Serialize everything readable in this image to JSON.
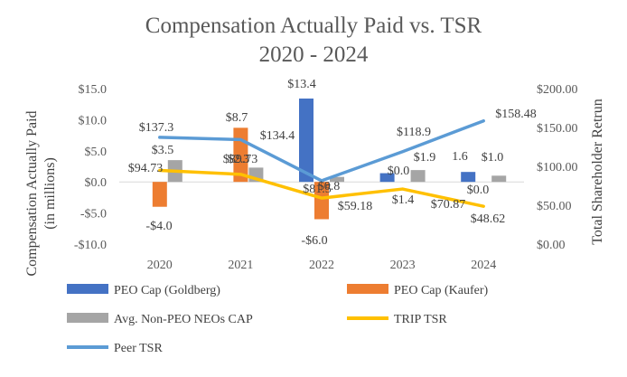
{
  "chart_data": {
    "type": "bar+line",
    "title_line1": "Compensation Actually Paid vs. TSR",
    "title_line2": "2020 - 2024",
    "categories": [
      "2020",
      "2021",
      "2022",
      "2023",
      "2024"
    ],
    "y_left": {
      "label_line1": "Compensation Actually Paid",
      "label_line2": "(in millions)",
      "ylim": [
        -10,
        15
      ],
      "ticks": [
        15,
        10,
        5,
        0,
        -5,
        -10
      ],
      "tick_labels": [
        "$15.0",
        "$10.0",
        "$5.0",
        "$0.0",
        "-$5.0",
        "-$10.0"
      ]
    },
    "y_right": {
      "label": "Total Shareholder Retrun",
      "ylim": [
        0,
        200
      ],
      "ticks": [
        200,
        150,
        100,
        50,
        0
      ],
      "tick_labels": [
        "$200.00",
        "$150.00",
        "$100.00",
        "$50.00",
        "$0.00"
      ]
    },
    "bar_series": [
      {
        "name": "PEO Cap (Goldberg)",
        "color": "#4472C4",
        "values": [
          null,
          null,
          13.4,
          1.4,
          1.6
        ],
        "labels": [
          "",
          "",
          "$13.4",
          "$1.4",
          "1.6"
        ]
      },
      {
        "name": "PEO Cap (Kaufer)",
        "color": "#ED7D31",
        "values": [
          -4.0,
          8.7,
          -6.0,
          null,
          null
        ],
        "labels": [
          "-$4.0",
          "$8.7",
          "-$6.0",
          "",
          ""
        ]
      },
      {
        "name": "Avg. Non-PEO NEOs CAP",
        "color": "#A5A5A5",
        "values": [
          3.5,
          2.3,
          0.8,
          1.9,
          1.0
        ],
        "labels": [
          "$3.5",
          "$2.3",
          "$0.8",
          "$1.9",
          "$1.0"
        ]
      }
    ],
    "line_series": [
      {
        "name": "TRIP TSR",
        "color": "#FFC000",
        "values": [
          94.73,
          89.73,
          59.18,
          70.87,
          48.62
        ],
        "labels": [
          "$94.73",
          "$89.73",
          "$59.18",
          "$70.87",
          "$48.62"
        ]
      },
      {
        "name": "Peer TSR",
        "color": "#5B9BD5",
        "values": [
          137.3,
          134.4,
          81.5,
          118.9,
          158.48
        ],
        "labels": [
          "$137.3",
          "$134.4",
          "$81.5",
          "$118.9",
          "$158.48"
        ]
      }
    ],
    "extra_labels": [
      "$0.0",
      "$0.0"
    ],
    "legend": [
      {
        "name": "PEO Cap (Goldberg)",
        "kind": "bar",
        "color": "#4472C4"
      },
      {
        "name": "PEO Cap (Kaufer)",
        "kind": "bar",
        "color": "#ED7D31"
      },
      {
        "name": "Avg. Non-PEO NEOs CAP",
        "kind": "bar",
        "color": "#A5A5A5"
      },
      {
        "name": "TRIP TSR",
        "kind": "line",
        "color": "#FFC000"
      },
      {
        "name": "Peer TSR",
        "kind": "line",
        "color": "#5B9BD5"
      }
    ]
  }
}
